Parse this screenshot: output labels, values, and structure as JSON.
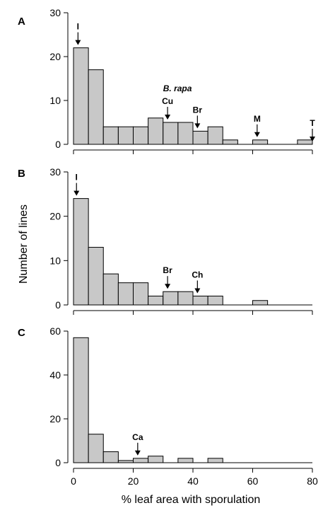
{
  "figure": {
    "ylabel": "Number of lines",
    "xlabel": "% leaf area with sporulation",
    "bar_color": "#c8c8c8",
    "edge_color": "#000000"
  },
  "chart_data": [
    {
      "type": "bar",
      "panel_label": "A",
      "bin_width": 5,
      "bin_starts": [
        0,
        5,
        10,
        15,
        20,
        25,
        30,
        35,
        40,
        45,
        50,
        55,
        60,
        65,
        70,
        75
      ],
      "values": [
        22,
        17,
        4,
        4,
        4,
        6,
        5,
        5,
        3,
        4,
        1,
        0,
        1,
        0,
        0,
        1
      ],
      "ylim": [
        0,
        30
      ],
      "yticks": [
        "0",
        "10",
        "20",
        "30"
      ],
      "xlim": [
        0,
        80
      ],
      "xticks": [],
      "annotations": [
        {
          "label": "I",
          "x": 1.5,
          "y": 22,
          "italic": false
        },
        {
          "label": "Cu",
          "x": 31.5,
          "y": 5,
          "italic": false
        },
        {
          "label": "Br",
          "x": 41.5,
          "y": 3,
          "italic": false
        },
        {
          "label": "M",
          "x": 61.5,
          "y": 1,
          "italic": false
        },
        {
          "label": "T",
          "x": 80,
          "y": 0,
          "italic": false
        }
      ],
      "extra_labels": [
        {
          "label": "B. rapa",
          "above": "Cu",
          "italic": true
        }
      ]
    },
    {
      "type": "bar",
      "panel_label": "B",
      "bin_width": 5,
      "bin_starts": [
        0,
        5,
        10,
        15,
        20,
        25,
        30,
        35,
        40,
        45,
        50,
        55,
        60,
        65,
        70,
        75
      ],
      "values": [
        24,
        13,
        7,
        5,
        5,
        2,
        3,
        3,
        2,
        2,
        0,
        0,
        1,
        0,
        0,
        0
      ],
      "ylim": [
        0,
        30
      ],
      "yticks": [
        "0",
        "10",
        "20",
        "30"
      ],
      "xlim": [
        0,
        80
      ],
      "xticks": [],
      "annotations": [
        {
          "label": "I",
          "x": 1,
          "y": 24,
          "italic": false
        },
        {
          "label": "Br",
          "x": 31.5,
          "y": 3,
          "italic": false
        },
        {
          "label": "Ch",
          "x": 41.5,
          "y": 2,
          "italic": false
        }
      ],
      "extra_labels": []
    },
    {
      "type": "bar",
      "panel_label": "C",
      "bin_width": 5,
      "bin_starts": [
        0,
        5,
        10,
        15,
        20,
        25,
        30,
        35,
        40,
        45,
        50,
        55,
        60,
        65,
        70,
        75
      ],
      "values": [
        57,
        13,
        5,
        1,
        2,
        3,
        0,
        2,
        0,
        2,
        0,
        0,
        0,
        0,
        0,
        0
      ],
      "ylim": [
        0,
        60
      ],
      "yticks": [
        "0",
        "20",
        "40",
        "60"
      ],
      "xlim": [
        0,
        80
      ],
      "xticks": [
        "0",
        "20",
        "40",
        "60",
        "80"
      ],
      "annotations": [
        {
          "label": "Ca",
          "x": 21.5,
          "y": 2,
          "italic": false
        }
      ],
      "extra_labels": []
    }
  ]
}
